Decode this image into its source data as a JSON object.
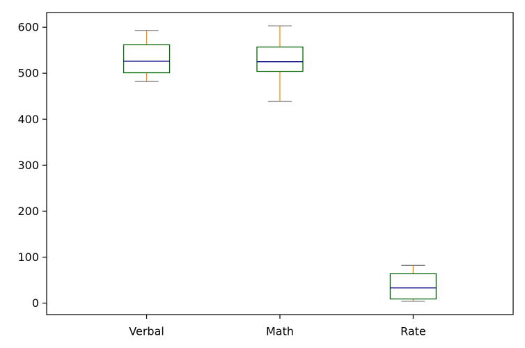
{
  "chart_data": {
    "type": "boxplot",
    "title": "",
    "xlabel": "",
    "ylabel": "",
    "ylim": [
      -25,
      632
    ],
    "yticks": [
      0,
      100,
      200,
      300,
      400,
      500,
      600
    ],
    "ytick_labels": [
      "0",
      "100",
      "200",
      "300",
      "400",
      "500",
      "600"
    ],
    "grid": false,
    "legend": "none",
    "colors": {
      "box": "#006400",
      "median": "#000080",
      "whisker": "#ff8c00",
      "cap": "#808080",
      "axis": "#000000"
    },
    "categories": [
      "Verbal",
      "Math",
      "Rate"
    ],
    "boxes": [
      {
        "name": "Verbal",
        "whislo": 482,
        "q1": 501,
        "median": 526,
        "q3": 562,
        "whishi": 593
      },
      {
        "name": "Math",
        "whislo": 439,
        "q1": 504,
        "median": 525,
        "q3": 557,
        "whishi": 603
      },
      {
        "name": "Rate",
        "whislo": 4,
        "q1": 9,
        "median": 33,
        "q3": 64,
        "whishi": 82
      }
    ]
  }
}
